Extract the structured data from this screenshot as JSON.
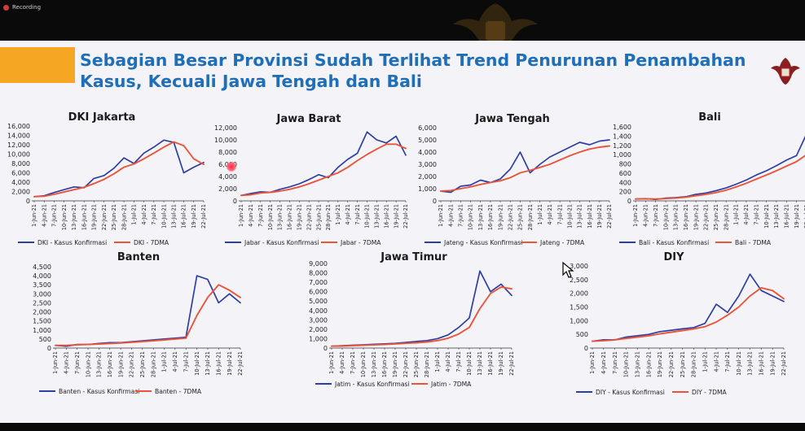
{
  "recording": {
    "label": "Recording"
  },
  "slide": {
    "title_line1": "Sebagian Besar Provinsi Sudah Terlihat Trend Penurunan Penambahan",
    "title_line2": "Kasus, Kecuali Jawa Tengah dan Bali"
  },
  "colors": {
    "kasus": "#2e3fa3",
    "dma": "#e8553a",
    "title": "#1f6fb8",
    "accent": "#f5a623"
  },
  "icons": [
    "garuda-emblem-icon",
    "recording-dot-icon",
    "mouse-cursor-icon",
    "laser-pointer-icon"
  ],
  "chart_data": [
    {
      "type": "line",
      "title": "DKI Jakarta",
      "x": [
        "1-Jun-21",
        "4-Jun-21",
        "7-Jun-21",
        "10-Jun-21",
        "13-Jun-21",
        "16-Jun-21",
        "19-Jun-21",
        "22-Jun-21",
        "25-Jun-21",
        "28-Jun-21",
        "1-Jul-21",
        "4-Jul-21",
        "7-Jul-21",
        "10-Jul-21",
        "13-Jul-21",
        "16-Jul-21",
        "19-Jul-21",
        "22-Jul-21"
      ],
      "ylim": [
        0,
        16000
      ],
      "yticks": [
        "0",
        "2,000",
        "4,000",
        "6,000",
        "8,000",
        "10,000",
        "12,000",
        "14,000",
        "16,000"
      ],
      "series": [
        {
          "name": "DKI - Kasus Konfirmasi",
          "values": [
            900,
            1100,
            1800,
            2400,
            3000,
            2800,
            4800,
            5400,
            7000,
            9200,
            8000,
            10200,
            11500,
            13000,
            12500,
            6000,
            7200,
            8200
          ]
        },
        {
          "name": "DKI - 7DMA",
          "values": [
            900,
            1000,
            1400,
            1900,
            2400,
            2900,
            3700,
            4600,
            5800,
            7200,
            7900,
            9000,
            10200,
            11500,
            12600,
            11800,
            9000,
            7800
          ]
        }
      ]
    },
    {
      "type": "line",
      "title": "Jawa Barat",
      "x": [
        "1-Jun-21",
        "4-Jun-21",
        "7-Jun-21",
        "10-Jun-21",
        "13-Jun-21",
        "16-Jun-21",
        "19-Jun-21",
        "22-Jun-21",
        "25-Jun-21",
        "28-Jun-21",
        "1-Jul-21",
        "4-Jul-21",
        "7-Jul-21",
        "10-Jul-21",
        "13-Jul-21",
        "16-Jul-21",
        "19-Jul-21",
        "22-Jul-21"
      ],
      "ylim": [
        0,
        12000
      ],
      "yticks": [
        "0",
        "2,000",
        "4,000",
        "6,000",
        "8,000",
        "10,000",
        "12,000"
      ],
      "series": [
        {
          "name": "Jabar - Kasus Konfirmasi",
          "values": [
            900,
            1200,
            1500,
            1400,
            1900,
            2300,
            2800,
            3500,
            4300,
            3800,
            5500,
            6800,
            7800,
            11300,
            10000,
            9500,
            10600,
            7500
          ]
        },
        {
          "name": "Jabar - 7DMA",
          "values": [
            900,
            1000,
            1300,
            1400,
            1600,
            1900,
            2300,
            2800,
            3400,
            4000,
            4600,
            5500,
            6600,
            7600,
            8500,
            9300,
            9300,
            8600
          ]
        }
      ]
    },
    {
      "type": "line",
      "title": "Jawa Tengah",
      "x": [
        "1-Jun-21",
        "4-Jun-21",
        "7-Jun-21",
        "10-Jun-21",
        "13-Jun-21",
        "16-Jun-21",
        "19-Jun-21",
        "22-Jun-21",
        "25-Jun-21",
        "28-Jun-21",
        "1-Jul-21",
        "4-Jul-21",
        "7-Jul-21",
        "10-Jul-21",
        "13-Jul-21",
        "16-Jul-21",
        "19-Jul-21",
        "22-Jul-21"
      ],
      "ylim": [
        0,
        6000
      ],
      "yticks": [
        "0",
        "1,000",
        "2,000",
        "3,000",
        "4,000",
        "5,000",
        "6,000"
      ],
      "series": [
        {
          "name": "Jateng - Kasus Konfirmasi",
          "values": [
            800,
            700,
            1200,
            1300,
            1700,
            1500,
            1800,
            2600,
            4000,
            2300,
            3000,
            3600,
            4000,
            4400,
            4800,
            4600,
            4900,
            5000
          ]
        },
        {
          "name": "Jateng - 7DMA",
          "values": [
            800,
            850,
            1000,
            1150,
            1350,
            1500,
            1650,
            1900,
            2300,
            2500,
            2750,
            3000,
            3350,
            3700,
            4000,
            4250,
            4400,
            4500
          ]
        }
      ]
    },
    {
      "type": "line",
      "title": "Bali",
      "x": [
        "1-Jun-21",
        "4-Jun-21",
        "7-Jun-21",
        "10-Jun-21",
        "13-Jun-21",
        "16-Jun-21",
        "19-Jun-21",
        "22-Jun-21",
        "25-Jun-21",
        "28-Jun-21",
        "1-Jul-21",
        "4-Jul-21",
        "7-Jul-21",
        "10-Jul-21",
        "13-Jul-21",
        "16-Jul-21",
        "19-Jul-21",
        "22-Jul-21"
      ],
      "ylim": [
        0,
        1600
      ],
      "yticks": [
        "0",
        "200",
        "400",
        "600",
        "800",
        "1,000",
        "1,200",
        "1,400",
        "1,600"
      ],
      "series": [
        {
          "name": "Bali - Kasus Konfirmasi",
          "values": [
            40,
            50,
            30,
            60,
            70,
            90,
            140,
            170,
            220,
            280,
            360,
            450,
            560,
            650,
            760,
            880,
            980,
            1450
          ]
        },
        {
          "name": "Bali - 7DMA",
          "values": [
            40,
            45,
            40,
            50,
            60,
            80,
            110,
            140,
            180,
            230,
            300,
            380,
            470,
            560,
            650,
            750,
            850,
            1000
          ]
        }
      ]
    },
    {
      "type": "line",
      "title": "Banten",
      "x": [
        "1-Jun-21",
        "4-Jun-21",
        "7-Jun-21",
        "10-Jun-21",
        "13-Jun-21",
        "16-Jun-21",
        "19-Jun-21",
        "22-Jun-21",
        "25-Jun-21",
        "28-Jun-21",
        "1-Jul-21",
        "4-Jul-21",
        "7-Jul-21",
        "10-Jul-21",
        "13-Jul-21",
        "16-Jul-21",
        "19-Jul-21",
        "22-Jul-21"
      ],
      "ylim": [
        0,
        4500
      ],
      "yticks": [
        "0",
        "500",
        "1,000",
        "1,500",
        "2,000",
        "2,500",
        "3,000",
        "3,500",
        "4,000",
        "4,500"
      ],
      "series": [
        {
          "name": "Banten - Kasus Konfirmasi",
          "values": [
            150,
            100,
            200,
            200,
            250,
            300,
            300,
            350,
            400,
            450,
            500,
            550,
            600,
            4000,
            3800,
            2500,
            3000,
            2500
          ]
        },
        {
          "name": "Banten - 7DMA",
          "values": [
            150,
            150,
            180,
            200,
            220,
            250,
            280,
            320,
            360,
            400,
            450,
            500,
            550,
            1800,
            2800,
            3500,
            3200,
            2800
          ]
        }
      ]
    },
    {
      "type": "line",
      "title": "Jawa Timur",
      "x": [
        "1-Jun-21",
        "4-Jun-21",
        "7-Jun-21",
        "10-Jun-21",
        "13-Jun-21",
        "16-Jun-21",
        "19-Jun-21",
        "22-Jun-21",
        "25-Jun-21",
        "28-Jun-21",
        "1-Jul-21",
        "4-Jul-21",
        "7-Jul-21",
        "10-Jul-21",
        "13-Jul-21",
        "16-Jul-21",
        "19-Jul-21",
        "22-Jul-21"
      ],
      "ylim": [
        0,
        9000
      ],
      "yticks": [
        "0",
        "1,000",
        "2,000",
        "3,000",
        "4,000",
        "5,000",
        "6,000",
        "7,000",
        "8,000",
        "9,000"
      ],
      "series": [
        {
          "name": "Jatim - Kasus Konfirmasi",
          "values": [
            200,
            250,
            300,
            350,
            400,
            450,
            500,
            600,
            700,
            800,
            1000,
            1400,
            2200,
            3200,
            8200,
            6000,
            6800,
            5600
          ]
        },
        {
          "name": "Jatim - 7DMA",
          "values": [
            200,
            220,
            260,
            300,
            340,
            380,
            440,
            500,
            560,
            650,
            800,
            1050,
            1500,
            2200,
            4200,
            5800,
            6500,
            6300
          ]
        }
      ]
    },
    {
      "type": "line",
      "title": "DIY",
      "x": [
        "1-Jun-21",
        "4-Jun-21",
        "7-Jun-21",
        "10-Jun-21",
        "13-Jun-21",
        "16-Jun-21",
        "19-Jun-21",
        "22-Jun-21",
        "25-Jun-21",
        "28-Jun-21",
        "1-Jul-21",
        "4-Jul-21",
        "7-Jul-21",
        "10-Jul-21",
        "13-Jul-21",
        "16-Jul-21",
        "19-Jul-21",
        "22-Jul-21"
      ],
      "ylim": [
        0,
        3000
      ],
      "yticks": [
        "0",
        "500",
        "1,000",
        "1,500",
        "2,000",
        "2,500",
        "3,000"
      ],
      "series": [
        {
          "name": "DIY - Kasus Konfirmasi",
          "values": [
            250,
            300,
            300,
            400,
            450,
            500,
            600,
            650,
            700,
            750,
            900,
            1600,
            1300,
            1900,
            2700,
            2100,
            1900,
            1700
          ]
        },
        {
          "name": "DIY - 7DMA",
          "values": [
            250,
            270,
            300,
            350,
            400,
            450,
            520,
            580,
            640,
            700,
            780,
            950,
            1200,
            1500,
            1900,
            2200,
            2100,
            1800
          ]
        }
      ]
    }
  ]
}
